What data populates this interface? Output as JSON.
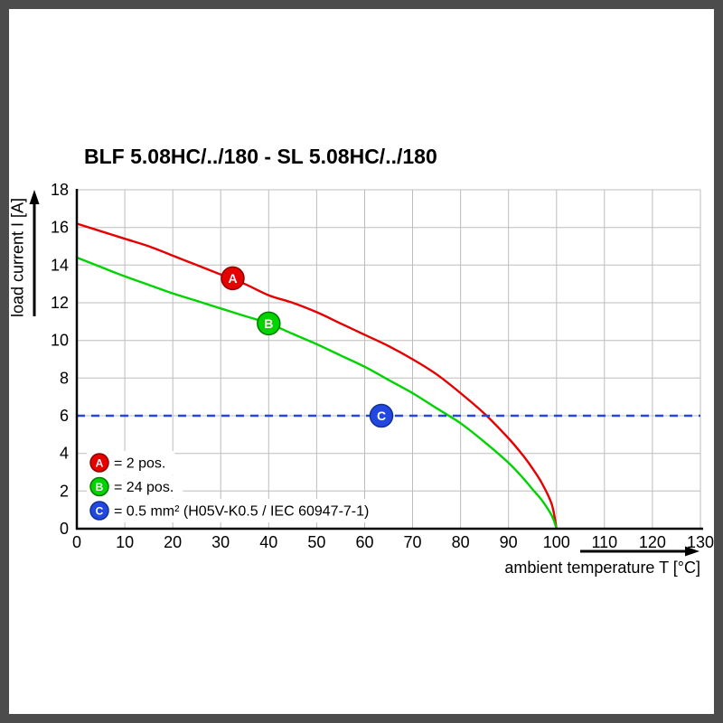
{
  "title": "BLF 5.08HC/../180 - SL 5.08HC/../180",
  "chart_data": {
    "type": "line",
    "title": "BLF 5.08HC/../180 - SL 5.08HC/../180",
    "xlabel": "ambient temperature T [°C]",
    "ylabel": "load current I [A]",
    "xlim": [
      0,
      130
    ],
    "ylim": [
      0,
      18
    ],
    "x_ticks": [
      0,
      10,
      20,
      30,
      40,
      50,
      60,
      70,
      80,
      90,
      100,
      110,
      120,
      130
    ],
    "y_ticks": [
      0,
      2,
      4,
      6,
      8,
      10,
      12,
      14,
      16,
      18
    ],
    "grid": true,
    "grid_color": "#bdbdbd",
    "axis_color": "#000000",
    "legend_position": "bottom-left-inside",
    "series": [
      {
        "name": "A",
        "label": "= 2 pos.",
        "color": "#e60000",
        "edge_color": "#8f0000",
        "style": "solid",
        "marker_at": {
          "x": 32.5,
          "y": 13.3
        },
        "points": [
          [
            0,
            16.2
          ],
          [
            5,
            15.8
          ],
          [
            10,
            15.4
          ],
          [
            15,
            15.0
          ],
          [
            20,
            14.5
          ],
          [
            25,
            14.0
          ],
          [
            30,
            13.5
          ],
          [
            35,
            13.0
          ],
          [
            40,
            12.4
          ],
          [
            45,
            12.0
          ],
          [
            50,
            11.5
          ],
          [
            55,
            10.9
          ],
          [
            60,
            10.3
          ],
          [
            65,
            9.7
          ],
          [
            70,
            9.0
          ],
          [
            75,
            8.2
          ],
          [
            80,
            7.2
          ],
          [
            85,
            6.1
          ],
          [
            90,
            4.8
          ],
          [
            93,
            3.9
          ],
          [
            95,
            3.2
          ],
          [
            97,
            2.4
          ],
          [
            99,
            1.3
          ],
          [
            100,
            0
          ]
        ]
      },
      {
        "name": "B",
        "label": "= 24 pos.",
        "color": "#00d400",
        "edge_color": "#007a00",
        "style": "solid",
        "marker_at": {
          "x": 40,
          "y": 10.9
        },
        "points": [
          [
            0,
            14.4
          ],
          [
            5,
            13.9
          ],
          [
            10,
            13.4
          ],
          [
            15,
            12.95
          ],
          [
            20,
            12.5
          ],
          [
            25,
            12.1
          ],
          [
            30,
            11.7
          ],
          [
            35,
            11.3
          ],
          [
            40,
            10.9
          ],
          [
            45,
            10.35
          ],
          [
            50,
            9.8
          ],
          [
            55,
            9.2
          ],
          [
            60,
            8.6
          ],
          [
            65,
            7.9
          ],
          [
            70,
            7.2
          ],
          [
            75,
            6.4
          ],
          [
            80,
            5.6
          ],
          [
            85,
            4.6
          ],
          [
            90,
            3.5
          ],
          [
            93,
            2.7
          ],
          [
            95,
            2.1
          ],
          [
            97,
            1.5
          ],
          [
            99,
            0.7
          ],
          [
            100,
            0
          ]
        ]
      },
      {
        "name": "C",
        "label": "= 0.5 mm² (H05V-K0.5 / IEC 60947-7-1)",
        "color": "#2248e0",
        "edge_color": "#10309a",
        "style": "dashed",
        "marker_at": {
          "x": 63.5,
          "y": 6
        },
        "points": [
          [
            0,
            6
          ],
          [
            130,
            6
          ]
        ]
      }
    ]
  }
}
